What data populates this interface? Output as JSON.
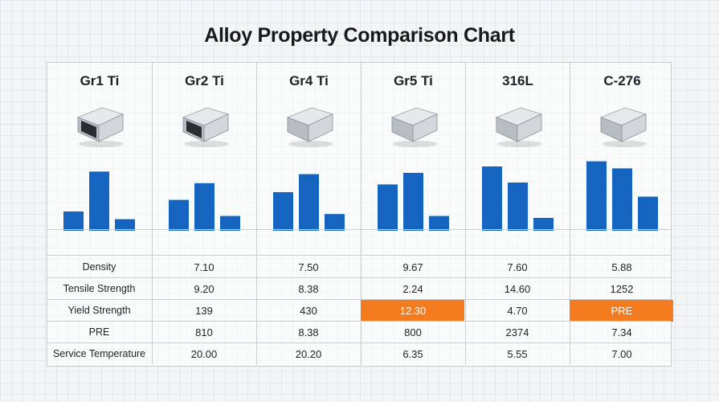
{
  "title": "Alloy Property Comparison Chart",
  "colors": {
    "bar": "#1565c0",
    "highlight": "#f47c1f",
    "grid": "#c9ced4"
  },
  "materials": [
    {
      "name": "Gr1 Ti",
      "icon": "hollow-tube-icon"
    },
    {
      "name": "Gr2 Ti",
      "icon": "hollow-tube-icon"
    },
    {
      "name": "Gr4 Ti",
      "icon": "metal-block-icon"
    },
    {
      "name": "Gr5 Ti",
      "icon": "metal-block-icon"
    },
    {
      "name": "316L",
      "icon": "metal-block-icon"
    },
    {
      "name": "C-276",
      "icon": "metal-block-icon"
    }
  ],
  "chart_data": {
    "type": "bar",
    "note": "One unlabeled 3-bar mini chart per material; no axes or tick labels printed, values are relative bar heights (0-100).",
    "categories": [
      "Gr1 Ti",
      "Gr2 Ti",
      "Gr4 Ti",
      "Gr5 Ti",
      "316L",
      "C-276"
    ],
    "series": [
      {
        "values": [
          30,
          48,
          60,
          72,
          100,
          108
        ]
      },
      {
        "values": [
          92,
          74,
          88,
          90,
          75,
          97
        ]
      },
      {
        "values": [
          18,
          23,
          26,
          23,
          20,
          53
        ]
      }
    ],
    "ylim": [
      0,
      110
    ]
  },
  "table": {
    "rows": [
      {
        "label": "Density",
        "values": [
          "7.10",
          "7.50",
          "9.67",
          "7.60",
          "5.88"
        ],
        "highlight": []
      },
      {
        "label": "Tensile Strength",
        "values": [
          "9.20",
          "8.38",
          "2.24",
          "14.60",
          "1252"
        ],
        "highlight": []
      },
      {
        "label": "Yield Strength",
        "values": [
          "139",
          "430",
          "12.30",
          "4.70",
          "PRE"
        ],
        "highlight": [
          2,
          4
        ]
      },
      {
        "label": "PRE",
        "values": [
          "810",
          "8.38",
          "800",
          "2374",
          "7.34"
        ],
        "highlight": []
      },
      {
        "label": "Service Temperature",
        "values": [
          "20.00",
          "20.20",
          "6.35",
          "5.55",
          "7.00"
        ],
        "highlight": []
      }
    ]
  }
}
